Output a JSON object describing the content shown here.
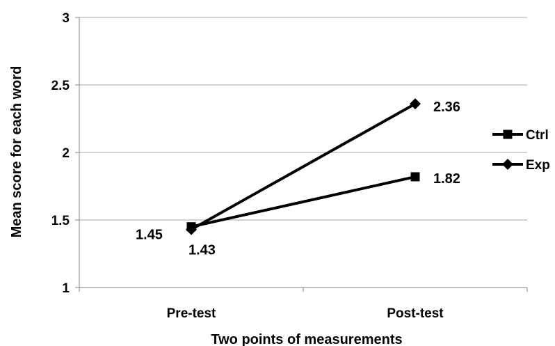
{
  "chart_data": {
    "type": "line",
    "categories": [
      "Pre-test",
      "Post-test"
    ],
    "series": [
      {
        "name": "Ctrl",
        "values": [
          1.45,
          1.82
        ],
        "marker": "square",
        "color": "#000000"
      },
      {
        "name": "Exp",
        "values": [
          1.43,
          2.36
        ],
        "marker": "diamond",
        "color": "#000000"
      }
    ],
    "data_labels": {
      "Ctrl": [
        "1.45",
        "1.82"
      ],
      "Exp": [
        "1.43",
        "2.36"
      ]
    },
    "xlabel": "Two points of measurements",
    "ylabel": "Mean score for each word",
    "ylim": [
      1,
      3
    ],
    "yticks": [
      1,
      1.5,
      2,
      2.5,
      3
    ],
    "ytick_labels": [
      "1",
      "1.5",
      "2",
      "2.5",
      "3"
    ],
    "grid": "horizontal",
    "legend_position": "right"
  }
}
